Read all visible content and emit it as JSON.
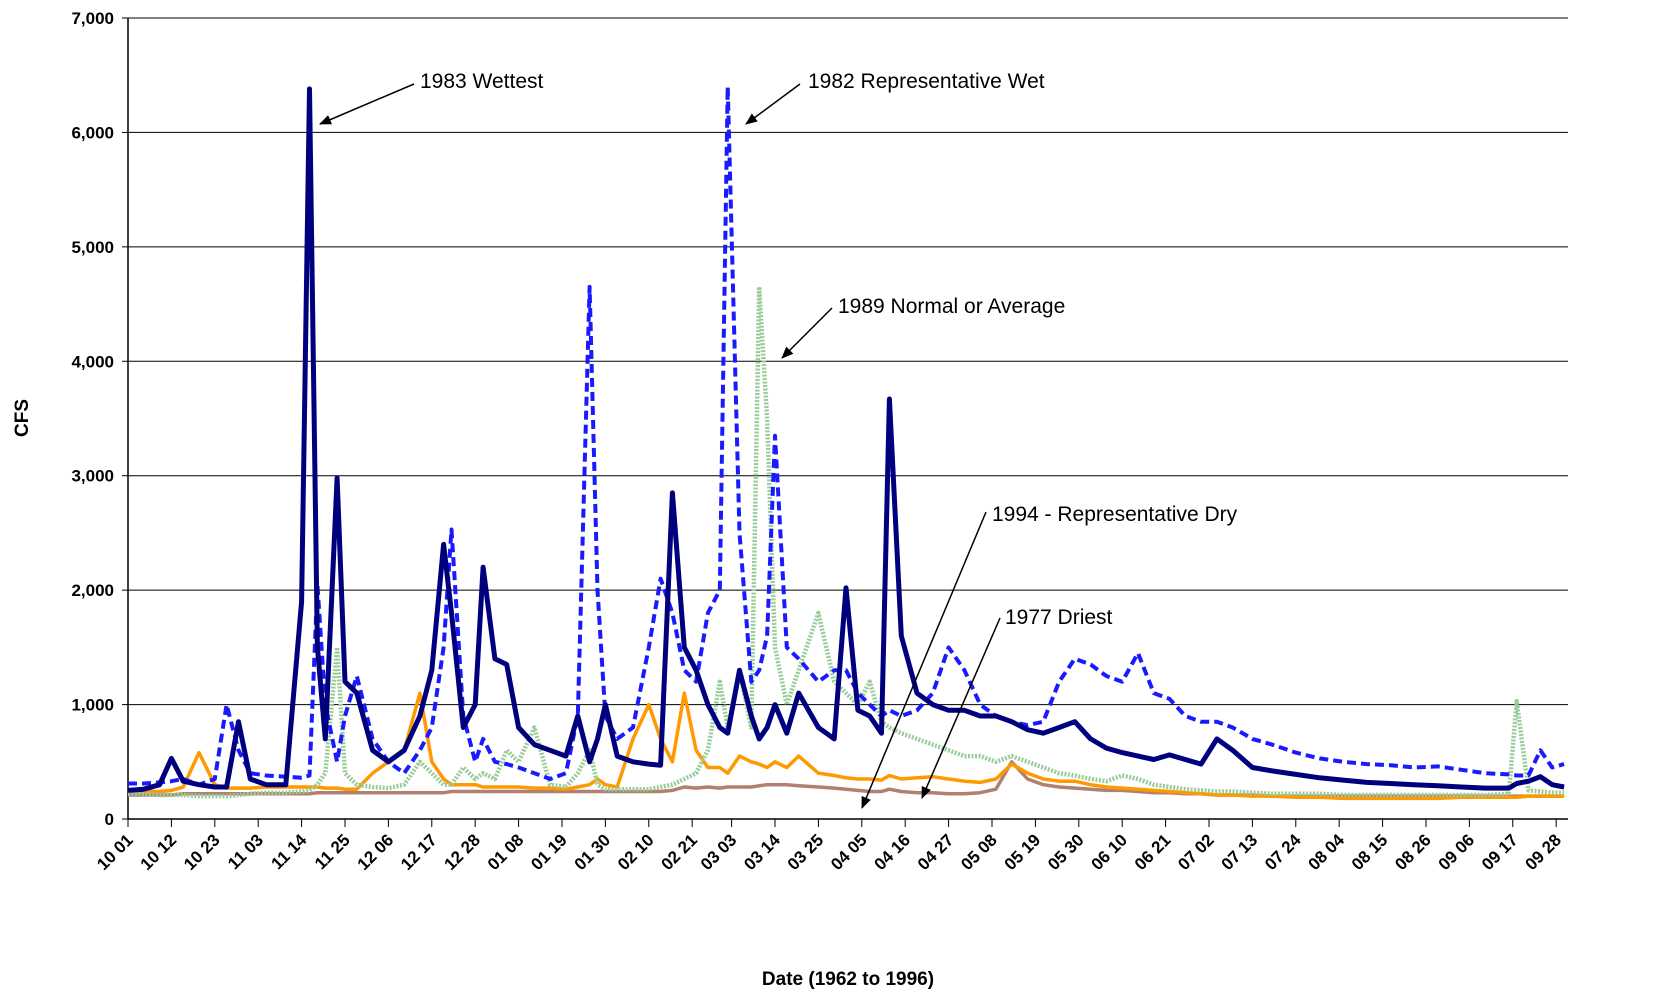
{
  "chart_data": {
    "type": "line",
    "x_label": "Date (1962 to 1996)",
    "y_label": "CFS",
    "xlim": [
      0,
      365
    ],
    "ylim": [
      0,
      7000
    ],
    "yticks": [
      0,
      {
        "value": 1000,
        "label": "1,000"
      },
      {
        "value": 2000,
        "label": "2,000"
      },
      {
        "value": 3000,
        "label": "3,000"
      },
      {
        "value": 4000,
        "label": "4,000"
      },
      {
        "value": 5000,
        "label": "5,000"
      },
      {
        "value": 6000,
        "label": "6,000"
      },
      {
        "value": 7000,
        "label": "7,000"
      }
    ],
    "xticks": [
      {
        "value": 0,
        "label": "10 01"
      },
      {
        "value": 11,
        "label": "10 12"
      },
      {
        "value": 22,
        "label": "10 23"
      },
      {
        "value": 33,
        "label": "11 03"
      },
      {
        "value": 44,
        "label": "11 14"
      },
      {
        "value": 55,
        "label": "11 25"
      },
      {
        "value": 66,
        "label": "12 06"
      },
      {
        "value": 77,
        "label": "12 17"
      },
      {
        "value": 88,
        "label": "12 28"
      },
      {
        "value": 99,
        "label": "01 08"
      },
      {
        "value": 110,
        "label": "01 19"
      },
      {
        "value": 121,
        "label": "01 30"
      },
      {
        "value": 132,
        "label": "02 10"
      },
      {
        "value": 143,
        "label": "02 21"
      },
      {
        "value": 153,
        "label": "03 03"
      },
      {
        "value": 164,
        "label": "03 14"
      },
      {
        "value": 175,
        "label": "03 25"
      },
      {
        "value": 186,
        "label": "04 05"
      },
      {
        "value": 197,
        "label": "04 16"
      },
      {
        "value": 208,
        "label": "04 27"
      },
      {
        "value": 219,
        "label": "05 08"
      },
      {
        "value": 230,
        "label": "05 19"
      },
      {
        "value": 241,
        "label": "05 30"
      },
      {
        "value": 252,
        "label": "06 10"
      },
      {
        "value": 263,
        "label": "06 21"
      },
      {
        "value": 274,
        "label": "07 02"
      },
      {
        "value": 285,
        "label": "07 13"
      },
      {
        "value": 296,
        "label": "07 24"
      },
      {
        "value": 307,
        "label": "08 04"
      },
      {
        "value": 318,
        "label": "08 15"
      },
      {
        "value": 329,
        "label": "08 26"
      },
      {
        "value": 340,
        "label": "09 06"
      },
      {
        "value": 351,
        "label": "09 17"
      },
      {
        "value": 362,
        "label": "09 28"
      }
    ],
    "grid": true,
    "x": [
      0,
      4,
      8,
      11,
      14,
      18,
      22,
      25,
      28,
      31,
      35,
      40,
      44,
      46,
      48,
      50,
      53,
      55,
      58,
      62,
      66,
      70,
      74,
      77,
      80,
      82,
      85,
      88,
      90,
      93,
      96,
      99,
      103,
      107,
      111,
      114,
      117,
      119,
      121,
      124,
      128,
      132,
      135,
      138,
      141,
      144,
      147,
      150,
      152,
      155,
      158,
      160,
      162,
      164,
      167,
      170,
      175,
      179,
      182,
      185,
      188,
      191,
      193,
      196,
      200,
      204,
      208,
      212,
      216,
      220,
      224,
      228,
      232,
      236,
      240,
      244,
      248,
      252,
      256,
      260,
      264,
      268,
      272,
      276,
      280,
      285,
      290,
      296,
      302,
      308,
      314,
      320,
      326,
      332,
      338,
      344,
      350,
      352,
      355,
      358,
      361,
      364
    ],
    "series": [
      {
        "color": "#00007f",
        "style": "heavy",
        "values": [
          250,
          260,
          300,
          530,
          330,
          300,
          280,
          280,
          850,
          350,
          300,
          300,
          1900,
          6380,
          1500,
          700,
          2980,
          1200,
          1100,
          600,
          500,
          600,
          900,
          1300,
          2400,
          1800,
          800,
          1000,
          2200,
          1400,
          1350,
          800,
          650,
          600,
          550,
          900,
          500,
          700,
          1000,
          550,
          500,
          480,
          470,
          2850,
          1500,
          1300,
          1000,
          800,
          750,
          1300,
          900,
          700,
          800,
          1000,
          750,
          1100,
          800,
          700,
          2020,
          950,
          900,
          750,
          3670,
          1600,
          1100,
          1000,
          950,
          950,
          900,
          900,
          850,
          780,
          750,
          800,
          850,
          700,
          620,
          580,
          550,
          520,
          560,
          520,
          480,
          700,
          600,
          450,
          420,
          390,
          360,
          340,
          320,
          310,
          300,
          290,
          280,
          270,
          270,
          310,
          330,
          370,
          300,
          280
        ]
      },
      {
        "color": "#1a1aff",
        "style": "dashed",
        "values": [
          310,
          310,
          320,
          330,
          350,
          300,
          350,
          1000,
          600,
          400,
          380,
          370,
          360,
          380,
          2050,
          1000,
          500,
          900,
          1250,
          700,
          500,
          400,
          600,
          800,
          1500,
          2530,
          900,
          500,
          700,
          500,
          480,
          450,
          400,
          350,
          400,
          900,
          4650,
          2000,
          900,
          700,
          800,
          1500,
          2100,
          1800,
          1300,
          1200,
          1800,
          2000,
          6400,
          2500,
          1200,
          1300,
          1600,
          3350,
          1500,
          1400,
          1200,
          1300,
          1300,
          1100,
          1000,
          900,
          950,
          900,
          950,
          1100,
          1500,
          1300,
          1000,
          900,
          850,
          820,
          850,
          1200,
          1400,
          1350,
          1250,
          1200,
          1450,
          1100,
          1050,
          900,
          850,
          850,
          800,
          700,
          650,
          580,
          530,
          500,
          480,
          470,
          450,
          460,
          430,
          400,
          390,
          380,
          380,
          600,
          450,
          480
        ]
      },
      {
        "color": "#99cc99",
        "style": "dotted",
        "values": [
          220,
          220,
          210,
          210,
          210,
          200,
          200,
          200,
          210,
          220,
          230,
          230,
          240,
          250,
          300,
          400,
          1500,
          400,
          300,
          280,
          270,
          300,
          500,
          400,
          300,
          300,
          450,
          350,
          400,
          350,
          600,
          500,
          800,
          300,
          280,
          400,
          600,
          300,
          260,
          260,
          260,
          260,
          280,
          300,
          350,
          400,
          600,
          1200,
          800,
          1300,
          800,
          4650,
          3500,
          1500,
          1000,
          1300,
          1800,
          1200,
          1100,
          1000,
          1200,
          850,
          800,
          750,
          700,
          650,
          600,
          550,
          550,
          500,
          550,
          500,
          450,
          400,
          380,
          350,
          330,
          380,
          350,
          300,
          280,
          260,
          250,
          240,
          240,
          230,
          220,
          220,
          220,
          210,
          210,
          210,
          210,
          210,
          210,
          210,
          220,
          1030,
          250,
          240,
          230,
          230
        ]
      },
      {
        "color": "#ff9900",
        "style": "solid",
        "values": [
          240,
          240,
          240,
          250,
          280,
          580,
          300,
          270,
          270,
          270,
          280,
          280,
          280,
          280,
          280,
          270,
          270,
          260,
          260,
          400,
          500,
          600,
          1100,
          500,
          350,
          300,
          300,
          300,
          280,
          280,
          280,
          280,
          270,
          270,
          260,
          280,
          300,
          350,
          300,
          280,
          700,
          1000,
          700,
          500,
          1100,
          600,
          450,
          450,
          400,
          550,
          500,
          480,
          450,
          500,
          450,
          550,
          400,
          380,
          360,
          350,
          350,
          340,
          380,
          350,
          360,
          370,
          350,
          330,
          320,
          350,
          480,
          400,
          350,
          330,
          330,
          300,
          280,
          270,
          260,
          250,
          240,
          230,
          220,
          210,
          210,
          200,
          200,
          190,
          190,
          180,
          180,
          180,
          180,
          180,
          190,
          190,
          190,
          190,
          200,
          200,
          200,
          200
        ]
      },
      {
        "color": "#b08070",
        "style": "solid",
        "values": [
          210,
          210,
          210,
          210,
          220,
          220,
          220,
          220,
          220,
          220,
          220,
          220,
          220,
          220,
          230,
          230,
          230,
          230,
          230,
          230,
          230,
          230,
          230,
          230,
          230,
          240,
          240,
          240,
          240,
          240,
          240,
          240,
          240,
          240,
          240,
          240,
          240,
          240,
          240,
          240,
          240,
          240,
          240,
          250,
          280,
          270,
          280,
          270,
          280,
          280,
          280,
          290,
          300,
          300,
          300,
          290,
          280,
          270,
          260,
          250,
          240,
          240,
          260,
          240,
          230,
          230,
          220,
          220,
          230,
          260,
          500,
          350,
          300,
          280,
          270,
          260,
          250,
          250,
          240,
          230,
          230,
          220,
          220,
          210,
          210,
          210,
          200,
          200,
          200,
          200,
          200,
          200,
          200,
          200,
          200,
          200,
          200,
          200,
          200,
          200,
          200,
          200
        ]
      }
    ],
    "annotations": [
      {
        "text": "1983 Wettest"
      },
      {
        "text": "1982 Representative Wet"
      },
      {
        "text": "1989 Normal or Average"
      },
      {
        "text": "1994 - Representative Dry"
      },
      {
        "text": "1977 Driest"
      }
    ]
  }
}
